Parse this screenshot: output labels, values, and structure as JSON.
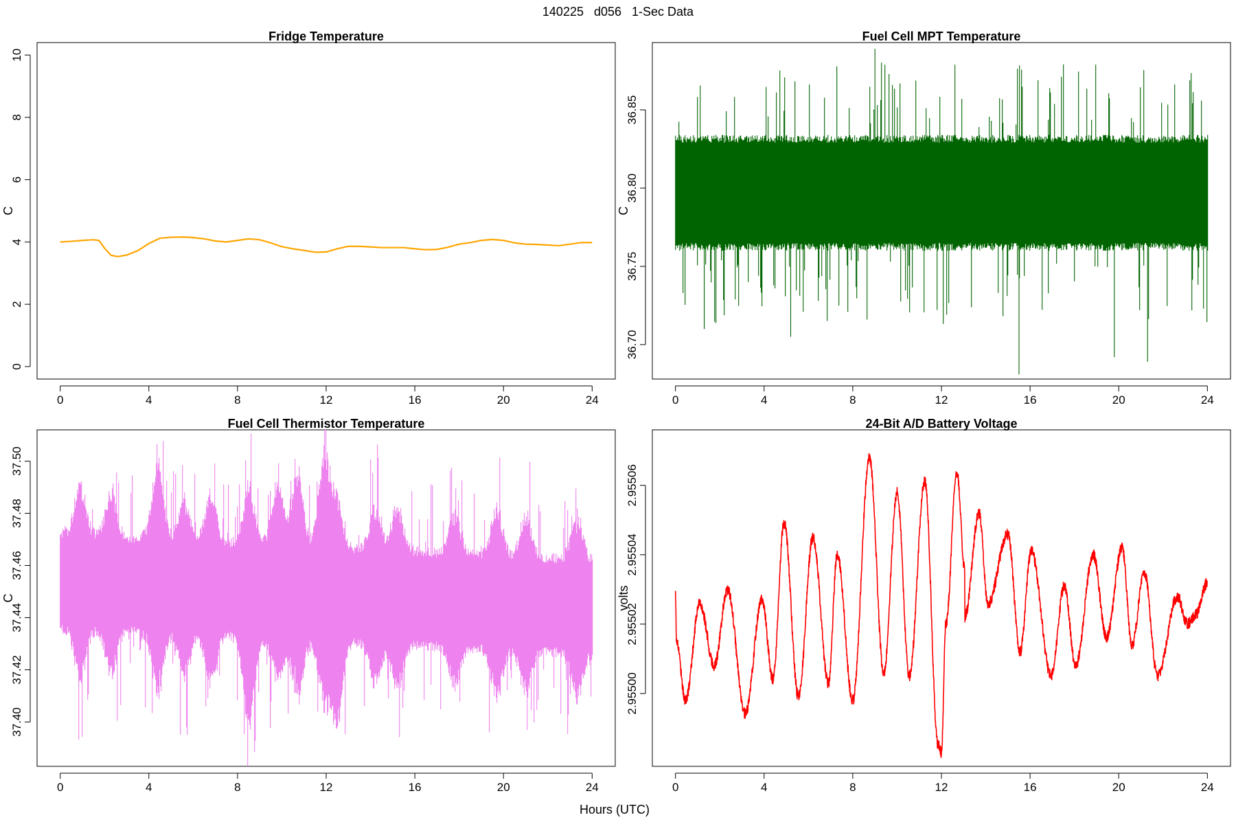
{
  "figure": {
    "title": "140225   d056   1-Sec Data",
    "xlabel": "Hours (UTC)"
  },
  "chart_data": [
    {
      "type": "line",
      "title": "Fridge Temperature",
      "xlabel": "",
      "ylabel": "C",
      "color": "#FFA500",
      "xlim": [
        0,
        24
      ],
      "ylim": [
        -0.4,
        10.4
      ],
      "xticks": [
        0,
        4,
        8,
        12,
        16,
        20,
        24
      ],
      "yticks": [
        0,
        2,
        4,
        6,
        8,
        10
      ],
      "ytick_labels": [
        "0",
        "2",
        "4",
        "6",
        "8",
        "10"
      ],
      "series": [
        {
          "x": [
            0,
            0.5,
            1.0,
            1.5,
            1.75,
            2.0,
            2.3,
            2.6,
            3.0,
            3.5,
            4.0,
            4.5,
            5.0,
            5.5,
            6.0,
            6.5,
            7.0,
            7.5,
            8.0,
            8.5,
            9.0,
            9.5,
            10.0,
            10.5,
            11.0,
            11.5,
            12.0,
            12.5,
            13.0,
            13.5,
            14.0,
            14.5,
            15.0,
            15.5,
            16.0,
            16.5,
            17.0,
            17.5,
            18.0,
            18.5,
            19.0,
            19.5,
            20.0,
            20.5,
            21.0,
            21.5,
            22.0,
            22.5,
            23.0,
            23.5,
            24.0
          ],
          "y": [
            4.0,
            4.02,
            4.05,
            4.07,
            4.05,
            3.8,
            3.57,
            3.53,
            3.58,
            3.72,
            3.95,
            4.12,
            4.15,
            4.16,
            4.14,
            4.1,
            4.03,
            4.0,
            4.05,
            4.1,
            4.07,
            3.97,
            3.85,
            3.78,
            3.73,
            3.67,
            3.68,
            3.78,
            3.86,
            3.86,
            3.84,
            3.82,
            3.82,
            3.82,
            3.78,
            3.75,
            3.76,
            3.83,
            3.93,
            3.98,
            4.05,
            4.08,
            4.05,
            3.97,
            3.93,
            3.92,
            3.9,
            3.88,
            3.93,
            3.98,
            3.98
          ]
        }
      ]
    },
    {
      "type": "line",
      "title": "Fuel Cell MPT Temperature",
      "xlabel": "",
      "ylabel": "C",
      "color": "#006400",
      "xlim": [
        0,
        24
      ],
      "ylim": [
        36.678,
        36.893
      ],
      "xticks": [
        0,
        4,
        8,
        12,
        16,
        20,
        24
      ],
      "yticks": [
        36.7,
        36.75,
        36.8,
        36.85
      ],
      "ytick_labels": [
        "36.70",
        "36.75",
        "36.80",
        "36.85"
      ],
      "noise": {
        "center_start": 36.797,
        "center_end": 36.797,
        "core_halfwidth": 0.032,
        "core_extra": 0.005,
        "spike_max": 0.084,
        "spike_min": 0.042,
        "spike_prob": 0.1,
        "outliers": [
          [
            15.5,
            36.681
          ],
          [
            9.0,
            36.889
          ],
          [
            19.8,
            36.692
          ],
          [
            21.3,
            36.689
          ],
          [
            5.2,
            36.705
          ],
          [
            1.3,
            36.71
          ]
        ]
      }
    },
    {
      "type": "line",
      "title": "Fuel Cell Thermistor Temperature",
      "xlabel": "",
      "ylabel": "C",
      "color": "#EE82EE",
      "xlim": [
        0,
        24
      ],
      "ylim": [
        37.383,
        37.512
      ],
      "xticks": [
        0,
        4,
        8,
        12,
        16,
        20,
        24
      ],
      "yticks": [
        37.4,
        37.42,
        37.44,
        37.46,
        37.48,
        37.5
      ],
      "ytick_labels": [
        "37.40",
        "37.42",
        "37.44",
        "37.46",
        "37.48",
        "37.50"
      ],
      "noise": {
        "center_start": 37.454,
        "center_end": 37.444,
        "core_halfwidth": 0.016,
        "core_extra": 0.004,
        "spike_max": 0.045,
        "spike_min": 0.02,
        "spike_prob": 0.09,
        "bursts": [
          {
            "x": 0.9,
            "amp": 0.018,
            "shift": 0.0
          },
          {
            "x": 2.3,
            "amp": 0.016,
            "shift": 0.0
          },
          {
            "x": 4.4,
            "amp": 0.024,
            "shift": 0.003
          },
          {
            "x": 5.6,
            "amp": 0.015,
            "shift": 0.0
          },
          {
            "x": 6.8,
            "amp": 0.017,
            "shift": 0.0
          },
          {
            "x": 8.5,
            "amp": 0.026,
            "shift": -0.006
          },
          {
            "x": 9.8,
            "amp": 0.019,
            "shift": 0.004
          },
          {
            "x": 10.7,
            "amp": 0.024,
            "shift": 0.003
          },
          {
            "x": 11.9,
            "amp": 0.028,
            "shift": 0.006
          },
          {
            "x": 12.5,
            "amp": 0.022,
            "shift": -0.006
          },
          {
            "x": 14.2,
            "amp": 0.015,
            "shift": 0.0
          },
          {
            "x": 15.2,
            "amp": 0.016,
            "shift": 0.0
          },
          {
            "x": 17.8,
            "amp": 0.014,
            "shift": 0.0
          },
          {
            "x": 19.7,
            "amp": 0.017,
            "shift": 0.0
          },
          {
            "x": 21.0,
            "amp": 0.015,
            "shift": 0.0
          },
          {
            "x": 23.3,
            "amp": 0.016,
            "shift": 0.0
          }
        ]
      }
    },
    {
      "type": "line",
      "title": "24-Bit A/D Battery Voltage",
      "xlabel": "",
      "ylabel": "volts",
      "color": "#FF0000",
      "xlim": [
        0,
        24
      ],
      "ylim": [
        2.954979,
        2.955076
      ],
      "xticks": [
        0,
        4,
        8,
        12,
        16,
        20,
        24
      ],
      "yticks": [
        2.955,
        2.95502,
        2.95504,
        2.95506
      ],
      "ytick_labels": [
        "2.95500",
        "2.95502",
        "2.95504",
        "2.95506"
      ],
      "series": [
        {
          "x": [
            0.0,
            0.05,
            0.45,
            1.1,
            1.75,
            2.35,
            3.15,
            3.9,
            4.4,
            4.9,
            5.55,
            6.2,
            6.9,
            7.3,
            8.0,
            8.75,
            9.4,
            10.0,
            10.55,
            11.25,
            11.85,
            12.0,
            12.2,
            12.7,
            13.05,
            13.05,
            13.7,
            14.1,
            15.0,
            15.55,
            16.05,
            16.95,
            17.55,
            18.05,
            18.85,
            19.45,
            20.15,
            20.6,
            21.15,
            21.75,
            22.65,
            23.1,
            23.5,
            24.0
          ],
          "y": [
            2.955029,
            2.955015,
            2.954998,
            2.955026,
            2.955008,
            2.95503,
            2.954994,
            2.955027,
            2.955004,
            2.955049,
            2.954999,
            2.955045,
            2.955003,
            2.95504,
            2.954998,
            2.955068,
            2.955006,
            2.955058,
            2.955005,
            2.955061,
            2.954985,
            2.954983,
            2.95502,
            2.955064,
            2.955036,
            2.955022,
            2.955052,
            2.955026,
            2.955046,
            2.955012,
            2.955041,
            2.955005,
            2.955031,
            2.955008,
            2.95504,
            2.955016,
            2.955042,
            2.955014,
            2.955035,
            2.955005,
            2.955028,
            2.95502,
            2.955023,
            2.955032
          ]
        }
      ]
    }
  ]
}
